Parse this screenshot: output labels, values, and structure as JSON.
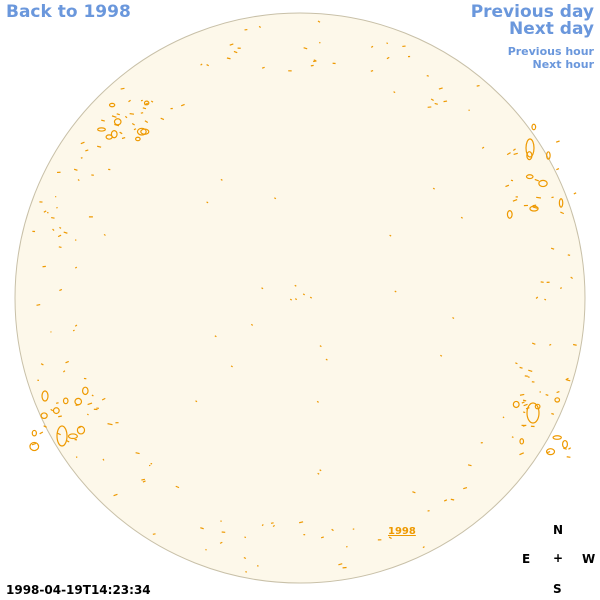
{
  "nav": {
    "back_label": "Back to 1998",
    "prev_day_label": "Previous day",
    "next_day_label": "Next day",
    "prev_hour_label": "Previous hour",
    "next_hour_label": "Next hour"
  },
  "map": {
    "year_link": "1998",
    "timestamp": "1998-04-19T14:23:34"
  },
  "compass": {
    "north": "N",
    "east": "E",
    "center": "+",
    "west": "W",
    "south": "S"
  },
  "colors": {
    "link": "#6a97dc",
    "disk_fill": "#fdf8ea",
    "disk_outline": "#c8c0a8",
    "contour": "#ee9900"
  }
}
